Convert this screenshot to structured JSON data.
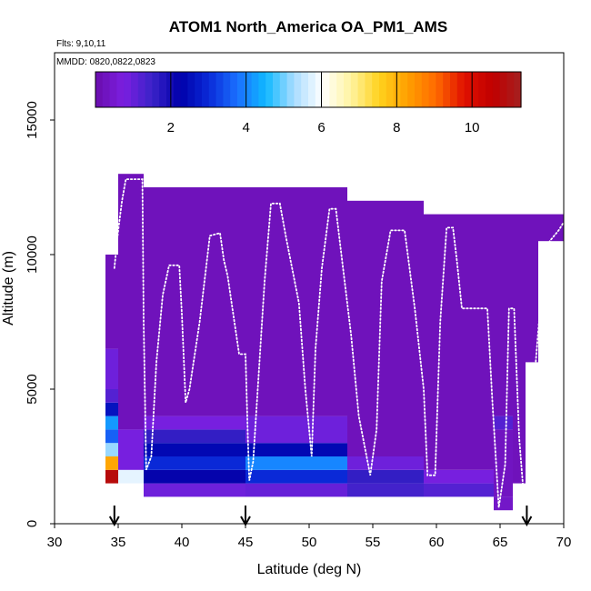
{
  "chart_data": {
    "type": "heatmap",
    "title": "ATOM1 North_America OA_PM1_AMS",
    "flights_label": "Flts: 9,10,11",
    "dates_label": "MMDD: 0820,0822,0823",
    "xlabel": "Latitude (deg N)",
    "ylabel": "Altitude (m)",
    "xlim": [
      30,
      70
    ],
    "ylim": [
      0,
      17500
    ],
    "x_ticks": [
      30,
      35,
      40,
      45,
      50,
      55,
      60,
      65,
      70
    ],
    "y_ticks": [
      0,
      5000,
      10000,
      15000
    ],
    "colorbar": {
      "range": [
        0,
        11.3
      ],
      "ticks": [
        2,
        4,
        6,
        8,
        10
      ],
      "colors": [
        "#6a0dad",
        "#7b1fe0",
        "#3a22c8",
        "#0000aa",
        "#0a2ad8",
        "#1a70ff",
        "#10b8ff",
        "#a8dcff",
        "#ffffff",
        "#fff3a0",
        "#ffd21e",
        "#ffa000",
        "#ff6a00",
        "#e01000",
        "#c00000",
        "#a52020"
      ]
    },
    "arrows_latitude": [
      34.7,
      45,
      67.1
    ],
    "columns": [
      {
        "lat": [
          34,
          35
        ],
        "alt": [
          1500,
          10000
        ],
        "cells": [
          [
            1500,
            2000,
            10.8
          ],
          [
            2000,
            2500,
            8.2
          ],
          [
            2500,
            3000,
            5.2
          ],
          [
            3000,
            3500,
            3.6
          ],
          [
            3500,
            4000,
            4.2
          ],
          [
            4000,
            4500,
            2.6
          ],
          [
            4500,
            5000,
            1.2
          ],
          [
            5000,
            6500,
            0.9
          ],
          [
            6500,
            10000,
            0.2
          ]
        ]
      },
      {
        "lat": [
          35,
          37
        ],
        "alt": [
          1500,
          13000
        ],
        "cells": [
          [
            1500,
            2000,
            5.8
          ],
          [
            2000,
            3500,
            0.8
          ],
          [
            3500,
            13000,
            0.2
          ]
        ]
      },
      {
        "lat": [
          37,
          45
        ],
        "alt": [
          1000,
          12500
        ],
        "cells": [
          [
            1000,
            1500,
            0.9
          ],
          [
            1500,
            2000,
            2.2
          ],
          [
            2000,
            2500,
            3.0
          ],
          [
            2500,
            3000,
            2.4
          ],
          [
            3000,
            3500,
            1.6
          ],
          [
            3500,
            4000,
            0.8
          ],
          [
            4000,
            12500,
            0.2
          ]
        ]
      },
      {
        "lat": [
          45,
          53
        ],
        "alt": [
          1000,
          12500
        ],
        "cells": [
          [
            1000,
            1500,
            1.0
          ],
          [
            1500,
            2000,
            3.0
          ],
          [
            2000,
            2500,
            4.0
          ],
          [
            2500,
            3000,
            2.4
          ],
          [
            3000,
            4000,
            0.9
          ],
          [
            4000,
            12500,
            0.2
          ]
        ]
      },
      {
        "lat": [
          53,
          59
        ],
        "alt": [
          1000,
          12000
        ],
        "cells": [
          [
            1000,
            1500,
            1.4
          ],
          [
            1500,
            2000,
            1.6
          ],
          [
            2000,
            2500,
            0.9
          ],
          [
            2500,
            12000,
            0.2
          ]
        ]
      },
      {
        "lat": [
          59,
          64.5
        ],
        "alt": [
          1000,
          11500
        ],
        "cells": [
          [
            1000,
            1500,
            1.2
          ],
          [
            1500,
            2000,
            0.8
          ],
          [
            2000,
            11500,
            0.2
          ]
        ]
      },
      {
        "lat": [
          64.5,
          66
        ],
        "alt": [
          500,
          11500
        ],
        "cells": [
          [
            500,
            1000,
            0.4
          ],
          [
            1000,
            3500,
            0.3
          ],
          [
            3500,
            4000,
            1.2
          ],
          [
            4000,
            11500,
            0.2
          ]
        ]
      },
      {
        "lat": [
          66,
          67
        ],
        "alt": [
          1500,
          11500
        ],
        "cells": [
          [
            1500,
            11500,
            0.2
          ]
        ]
      },
      {
        "lat": [
          67,
          68
        ],
        "alt": [
          6000,
          11500
        ],
        "cells": [
          [
            6000,
            11500,
            0.2
          ]
        ]
      },
      {
        "lat": [
          68,
          70
        ],
        "alt": [
          10500,
          11500
        ],
        "cells": [
          [
            10500,
            11500,
            0.2
          ]
        ]
      }
    ],
    "flight_track": [
      [
        34.7,
        9500
      ],
      [
        35.0,
        10900
      ],
      [
        35.3,
        12000
      ],
      [
        35.6,
        12800
      ],
      [
        36.9,
        12800
      ],
      [
        37.0,
        7500
      ],
      [
        37.2,
        2000
      ],
      [
        37.6,
        2500
      ],
      [
        38.0,
        6000
      ],
      [
        38.5,
        8500
      ],
      [
        39.0,
        9600
      ],
      [
        39.8,
        9600
      ],
      [
        40.0,
        7800
      ],
      [
        40.3,
        4500
      ],
      [
        40.6,
        5000
      ],
      [
        41.4,
        7500
      ],
      [
        42.2,
        10700
      ],
      [
        43.0,
        10800
      ],
      [
        43.3,
        9800
      ],
      [
        43.6,
        9200
      ],
      [
        44.5,
        6300
      ],
      [
        45.0,
        6300
      ],
      [
        45.2,
        3000
      ],
      [
        45.3,
        1600
      ],
      [
        45.6,
        2300
      ],
      [
        46.5,
        9000
      ],
      [
        47.0,
        11900
      ],
      [
        47.7,
        11900
      ],
      [
        48.2,
        10600
      ],
      [
        49.2,
        8200
      ],
      [
        49.7,
        5000
      ],
      [
        50.2,
        2500
      ],
      [
        50.5,
        6500
      ],
      [
        51.0,
        9500
      ],
      [
        51.6,
        11700
      ],
      [
        52.1,
        11700
      ],
      [
        53.3,
        7000
      ],
      [
        53.9,
        4000
      ],
      [
        54.8,
        1800
      ],
      [
        55.3,
        3500
      ],
      [
        55.7,
        9000
      ],
      [
        56.4,
        10900
      ],
      [
        57.5,
        10900
      ],
      [
        58.3,
        8000
      ],
      [
        59.0,
        5000
      ],
      [
        59.3,
        1800
      ],
      [
        59.9,
        1800
      ],
      [
        60.3,
        7500
      ],
      [
        60.8,
        11000
      ],
      [
        61.3,
        11000
      ],
      [
        61.6,
        9800
      ],
      [
        62.0,
        8000
      ],
      [
        64.0,
        8000
      ],
      [
        64.4,
        4500
      ],
      [
        64.9,
        600
      ],
      [
        65.4,
        2200
      ],
      [
        65.7,
        8000
      ],
      [
        66.1,
        8000
      ],
      [
        66.5,
        3200
      ],
      [
        66.9,
        800
      ],
      [
        67.4,
        3000
      ],
      [
        67.8,
        6000
      ],
      [
        68.4,
        9500
      ],
      [
        68.9,
        10500
      ],
      [
        69.6,
        10900
      ],
      [
        70.0,
        11200
      ]
    ]
  }
}
